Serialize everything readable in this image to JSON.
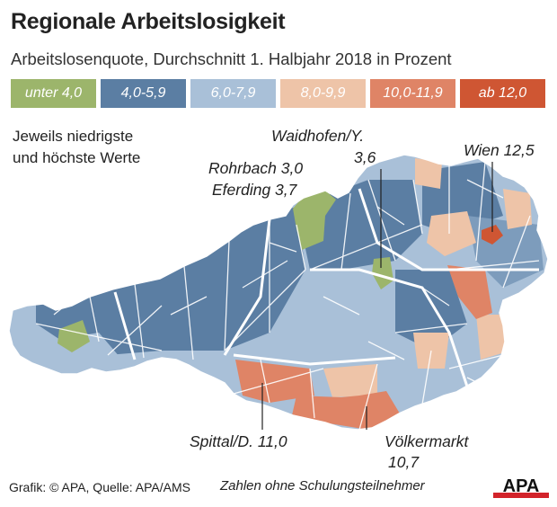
{
  "title": "Regionale Arbeitslosigkeit",
  "subtitle": "Arbeitslosenquote, Durchschnitt 1. Halbjahr 2018 in Prozent",
  "legend": [
    {
      "label": "unter 4,0",
      "color": "#9cb56b"
    },
    {
      "label": "4,0-5,9",
      "color": "#5b7ea3"
    },
    {
      "label": "6,0-7,9",
      "color": "#a9c0d8"
    },
    {
      "label": "8,0-9,9",
      "color": "#eec4a8"
    },
    {
      "label": "10,0-11,9",
      "color": "#df8466"
    },
    {
      "label": "ab 12,0",
      "color": "#cf5633"
    }
  ],
  "note_line1": "Jeweils niedrigste",
  "note_line2": "und höchste Werte",
  "labels": {
    "waidhofen_1": "Waidhofen/Y.",
    "waidhofen_2": "3,6",
    "wien": "Wien 12,5",
    "rohrbach": "Rohrbach 3,0",
    "eferding": "Eferding 3,7",
    "spittal": "Spittal/D. 11,0",
    "voelkermarkt_1": "Völkermarkt",
    "voelkermarkt_2": "10,7"
  },
  "footer": {
    "credit": "Grafik: © APA, Quelle: APA/AMS",
    "note": "Zahlen ohne Schulungsteilnehmer",
    "logo": "APA"
  }
}
